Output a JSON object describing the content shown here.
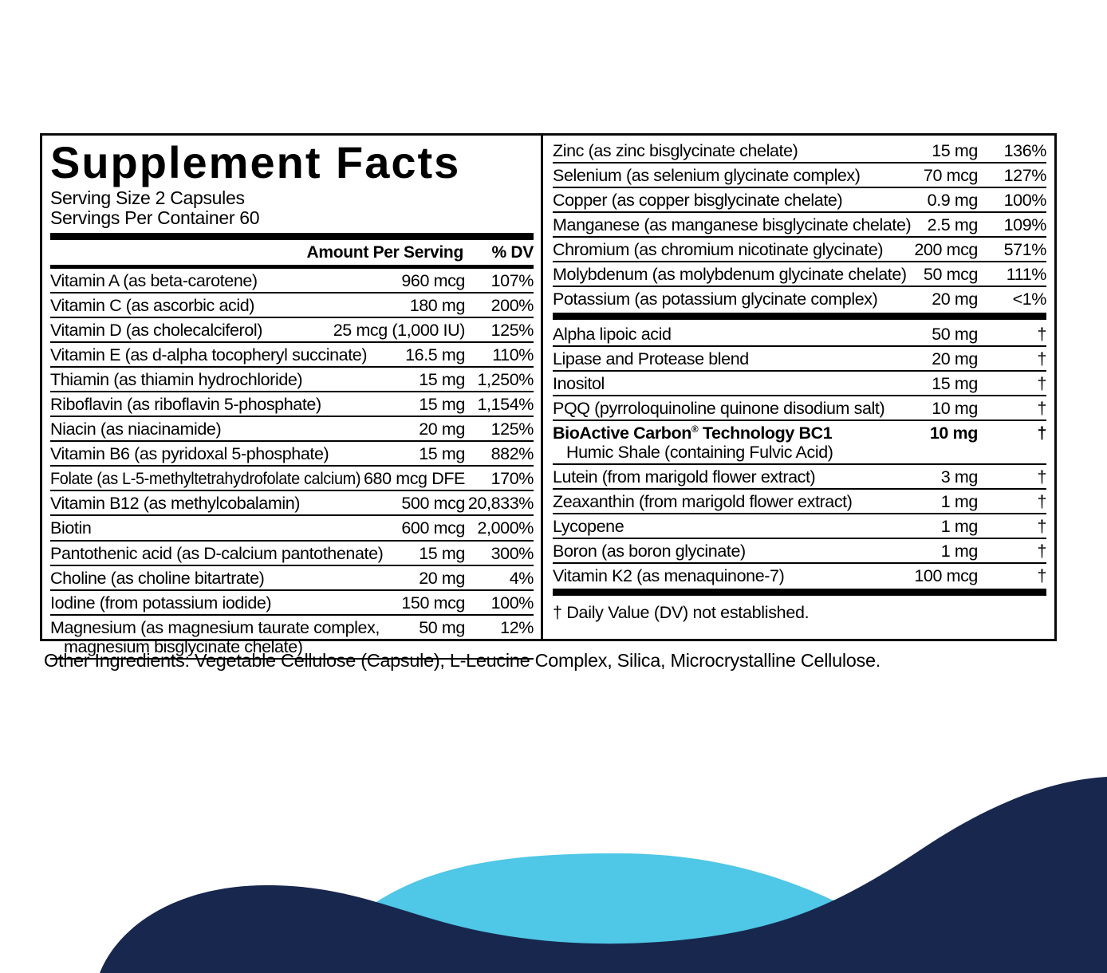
{
  "title": "Supplement Facts",
  "serving_size": "Serving Size 2 Capsules",
  "servings_per_container": "Servings Per Container 60",
  "column_headers": {
    "amount": "Amount Per Serving",
    "dv": "% DV"
  },
  "left_rows": [
    {
      "name": "Vitamin A (as beta-carotene)",
      "amount": "960 mcg",
      "dv": "107%"
    },
    {
      "name": "Vitamin C (as ascorbic acid)",
      "amount": "180 mg",
      "dv": "200%"
    },
    {
      "name": "Vitamin D (as cholecalciferol)",
      "amount": "25 mcg (1,000 IU)",
      "dv": "125%"
    },
    {
      "name": "Vitamin E (as d-alpha tocopheryl succinate)",
      "amount": "16.5 mg",
      "dv": "110%"
    },
    {
      "name": "Thiamin (as thiamin hydrochloride)",
      "amount": "15 mg",
      "dv": "1,250%"
    },
    {
      "name": "Riboflavin (as riboflavin 5-phosphate)",
      "amount": "15 mg",
      "dv": "1,154%"
    },
    {
      "name": "Niacin (as niacinamide)",
      "amount": "20 mg",
      "dv": "125%"
    },
    {
      "name": "Vitamin B6 (as pyridoxal 5-phosphate)",
      "amount": "15 mg",
      "dv": "882%"
    },
    {
      "name": "Folate (as L-5-methyltetrahydrofolate calcium)",
      "amount": "680 mcg DFE",
      "dv": "170%"
    },
    {
      "name": "Vitamin B12 (as methylcobalamin)",
      "amount": "500 mcg",
      "dv": "20,833%"
    },
    {
      "name": "Biotin",
      "amount": "600 mcg",
      "dv": "2,000%"
    },
    {
      "name": "Pantothenic acid (as D-calcium pantothenate)",
      "amount": "15 mg",
      "dv": "300%"
    },
    {
      "name": "Choline (as choline bitartrate)",
      "amount": "20 mg",
      "dv": "4%"
    },
    {
      "name": "Iodine (from potassium iodide)",
      "amount": "150 mcg",
      "dv": "100%"
    },
    {
      "name": "Magnesium (as magnesium taurate complex,",
      "sub": "magnesium bisglycinate chelate)",
      "amount": "50 mg",
      "dv": "12%"
    }
  ],
  "right_rows": [
    {
      "name": "Zinc (as zinc bisglycinate chelate)",
      "amount": "15 mg",
      "dv": "136%"
    },
    {
      "name": "Selenium (as selenium glycinate complex)",
      "amount": "70 mcg",
      "dv": "127%"
    },
    {
      "name": "Copper (as copper bisglycinate chelate)",
      "amount": "0.9 mg",
      "dv": "100%"
    },
    {
      "name": "Manganese (as manganese bisglycinate chelate)",
      "amount": "2.5 mg",
      "dv": "109%"
    },
    {
      "name": "Chromium (as chromium nicotinate glycinate)",
      "amount": "200 mcg",
      "dv": "571%"
    },
    {
      "name": "Molybdenum (as molybdenum glycinate chelate)",
      "amount": "50 mcg",
      "dv": "111%"
    },
    {
      "name": "Potassium (as potassium glycinate complex)",
      "amount": "20 mg",
      "dv": "<1%",
      "bar_after": "thick"
    },
    {
      "name": "Alpha lipoic acid",
      "amount": "50 mg",
      "dv": "†"
    },
    {
      "name": "Lipase and Protease blend",
      "amount": "20 mg",
      "dv": "†"
    },
    {
      "name": "Inositol",
      "amount": "15 mg",
      "dv": "†"
    },
    {
      "name": "PQQ (pyrroloquinoline quinone disodium salt)",
      "amount": "10 mg",
      "dv": "†"
    },
    {
      "name_pre": "BioActive Carbon",
      "name_sup": "®",
      "name_post": " Technology BC1",
      "bold": true,
      "sub": "Humic Shale (containing Fulvic Acid)",
      "amount": "10 mg",
      "dv": "†"
    },
    {
      "name": "Lutein (from marigold flower extract)",
      "amount": "3 mg",
      "dv": "†"
    },
    {
      "name": "Zeaxanthin (from marigold flower extract)",
      "amount": "1 mg",
      "dv": "†"
    },
    {
      "name": "Lycopene",
      "amount": "1 mg",
      "dv": "†"
    },
    {
      "name": "Boron (as boron glycinate)",
      "amount": "1 mg",
      "dv": "†"
    },
    {
      "name": "Vitamin K2 (as menaquinone-7)",
      "amount": "100 mcg",
      "dv": "†",
      "bar_after": "thick"
    }
  ],
  "footnote": "† Daily Value (DV) not established.",
  "other_ingredients": "Other Ingredients: Vegetable Cellulose (Capsule), L-Leucine Complex, Silica, Microcrystalline Cellulose.",
  "colors": {
    "navy": "#18274e",
    "cyan": "#4fc7e6",
    "ink": "#000000"
  }
}
